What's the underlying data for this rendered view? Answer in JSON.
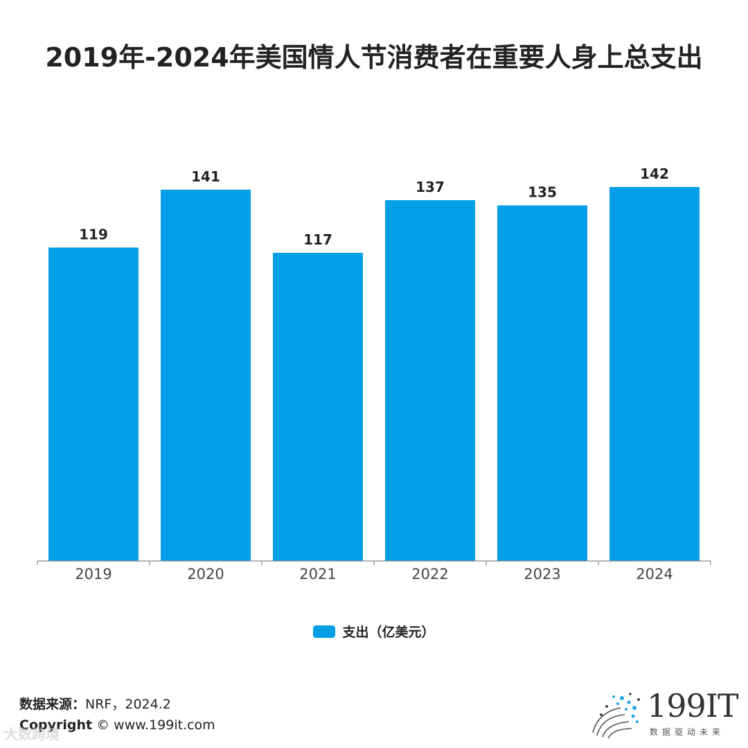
{
  "title": "2019年-2024年美国情人节消费者在重要人身上总支出",
  "chart_data": {
    "type": "bar",
    "categories": [
      "2019",
      "2020",
      "2021",
      "2022",
      "2023",
      "2024"
    ],
    "series": [
      {
        "name": "支出（亿美元）",
        "values": [
          119,
          141,
          117,
          137,
          135,
          142
        ]
      }
    ],
    "ylim": [
      0,
      142
    ],
    "grid": false,
    "legend_position": "bottom",
    "bar_color": "#039FE6"
  },
  "legend": {
    "label": "支出（亿美元）"
  },
  "footer": {
    "source_label": "数据来源：",
    "source_value": "NRF，2024.2",
    "copyright_label": "Copyright",
    "copyright_value": "© www.199it.com"
  },
  "logo": {
    "text": "199IT",
    "subtitle": "数据驱动未来"
  },
  "watermark": "大数跨境"
}
